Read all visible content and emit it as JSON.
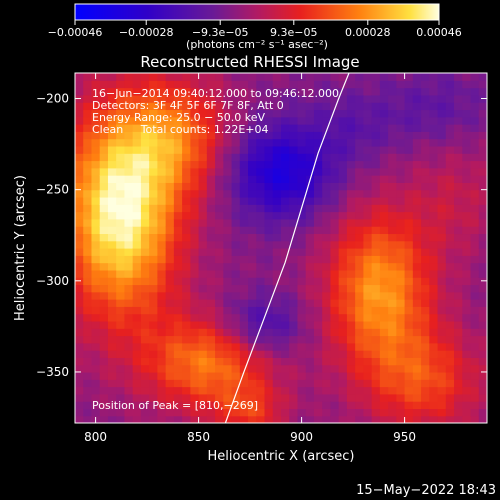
{
  "chart_data": {
    "type": "heatmap",
    "title": "Reconstructed RHESSI Image",
    "xlabel": "Heliocentric X (arcsec)",
    "ylabel": "Heliocentric Y (arcsec)",
    "xlim": [
      790,
      990
    ],
    "ylim": [
      -378,
      -186
    ],
    "x_ticks": [
      800,
      850,
      900,
      950
    ],
    "x_tick_labels": [
      "800",
      "850",
      "900",
      "950"
    ],
    "y_ticks": [
      -200,
      -250,
      -300,
      -350
    ],
    "y_tick_labels": [
      "−200",
      "−250",
      "−300",
      "−350"
    ],
    "colorbar": {
      "ticks": [
        -0.00046,
        -0.00028,
        -9.3e-05,
        9.3e-05,
        0.00028,
        0.00046
      ],
      "tick_labels": [
        "−0.00046",
        "−0.00028",
        "−9.3e−05",
        "9.3e−05",
        "0.00028",
        "0.00046"
      ],
      "range": [
        -0.00046,
        0.00046
      ],
      "unit_text": "(photons cm⁻² s⁻¹ asec⁻²)"
    },
    "info_lines": [
      "16−Jun−2014 09:40:12.000 to 09:46:12.000",
      "Detectors: 3F 4F 5F 6F 7F 8F, Att 0",
      "Energy Range: 25.0 − 50.0 keV",
      "Clean     Total counts: 1.22E+04"
    ],
    "peak_label": "Position of Peak = [810,−269]",
    "peak_position": [
      810,
      -269
    ],
    "timestamp": "15−May−2022 18:43",
    "limb_curve": [
      [
        863,
        -378
      ],
      [
        872,
        -350
      ],
      [
        882,
        -320
      ],
      [
        892,
        -290
      ],
      [
        900,
        -260
      ],
      [
        908,
        -230
      ],
      [
        918,
        -200
      ],
      [
        923,
        -186
      ]
    ],
    "hot_regions": [
      {
        "x": 812,
        "y": -262,
        "sx": 20,
        "sy": 40,
        "amp": 0.00052
      },
      {
        "x": 840,
        "y": -220,
        "sx": 18,
        "sy": 22,
        "amp": 0.00024
      },
      {
        "x": 855,
        "y": -345,
        "sx": 22,
        "sy": 18,
        "amp": 0.0003
      },
      {
        "x": 875,
        "y": -372,
        "sx": 12,
        "sy": 10,
        "amp": 0.00016
      },
      {
        "x": 938,
        "y": -305,
        "sx": 18,
        "sy": 30,
        "amp": 0.00035
      },
      {
        "x": 960,
        "y": -355,
        "sx": 20,
        "sy": 20,
        "amp": 0.00021
      },
      {
        "x": 975,
        "y": -255,
        "sx": 16,
        "sy": 22,
        "amp": 9e-05
      }
    ],
    "cold_regions": [
      {
        "x": 890,
        "y": -240,
        "sx": 18,
        "sy": 18,
        "amp": -0.00028
      },
      {
        "x": 880,
        "y": -325,
        "sx": 14,
        "sy": 12,
        "amp": -0.00018
      },
      {
        "x": 925,
        "y": -215,
        "sx": 16,
        "sy": 14,
        "amp": -8e-05
      },
      {
        "x": 965,
        "y": -205,
        "sx": 18,
        "sy": 14,
        "amp": -8e-05
      }
    ],
    "grid": false
  }
}
